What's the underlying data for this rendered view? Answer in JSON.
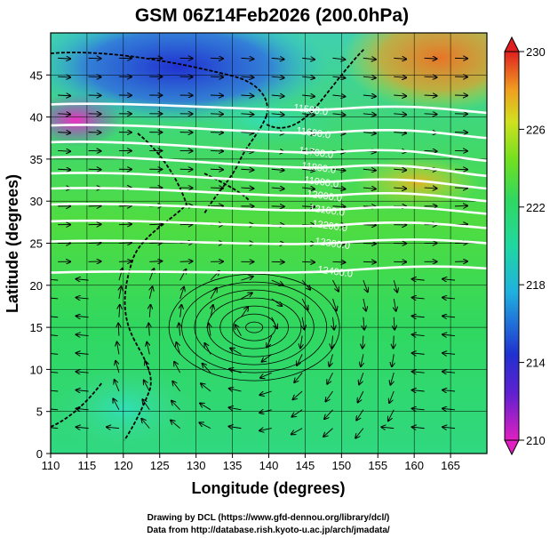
{
  "title": "GSM 06Z14Feb2026 (200.0hPa)",
  "xlabel": "Longitude (degrees)",
  "ylabel": "Latitude (degrees)",
  "credits": [
    "Drawing by DCL (https://www.gfd-dennou.org/library/dcl/)",
    "Data from http://database.rish.kyoto-u.ac.jp/arch/jmadata/"
  ],
  "chart_data": {
    "type": "map",
    "field": "temperature (shaded) + geopotential height (contours) + wind (streamlines)",
    "xlim": [
      110,
      170
    ],
    "ylim": [
      0,
      50
    ],
    "x_ticks": [
      110,
      115,
      120,
      125,
      130,
      135,
      140,
      145,
      150,
      155,
      160,
      165
    ],
    "y_ticks": [
      0,
      5,
      10,
      15,
      20,
      25,
      30,
      35,
      40,
      45
    ],
    "colorbar": {
      "min": 210,
      "max": 230,
      "ticks": [
        210,
        214,
        218,
        222,
        226,
        230
      ],
      "colors": [
        "#e020c0",
        "#2030d0",
        "#20c0e0",
        "#30d880",
        "#60e020",
        "#d0e020",
        "#f0a020",
        "#e02020"
      ]
    },
    "contours": [
      {
        "label": "11500.0",
        "lat_west": 41.5,
        "lat_east": 40.5
      },
      {
        "label": "11600.0",
        "lat_west": 39.0,
        "lat_east": 37.5
      },
      {
        "label": "11700.0",
        "lat_west": 37.0,
        "lat_east": 34.8
      },
      {
        "label": "11800.0",
        "lat_west": 35.2,
        "lat_east": 33.0
      },
      {
        "label": "11900.0",
        "lat_west": 33.3,
        "lat_east": 31.5
      },
      {
        "label": "12000.0",
        "lat_west": 31.5,
        "lat_east": 30.0
      },
      {
        "label": "12100.0",
        "lat_west": 29.6,
        "lat_east": 28.5
      },
      {
        "label": "12200.0",
        "lat_west": 27.6,
        "lat_east": 26.8
      },
      {
        "label": "12300.0",
        "lat_west": 25.2,
        "lat_east": 25.0
      },
      {
        "label": "12400.0",
        "lat_west": 21.5,
        "lat_east": 22.0
      }
    ]
  }
}
